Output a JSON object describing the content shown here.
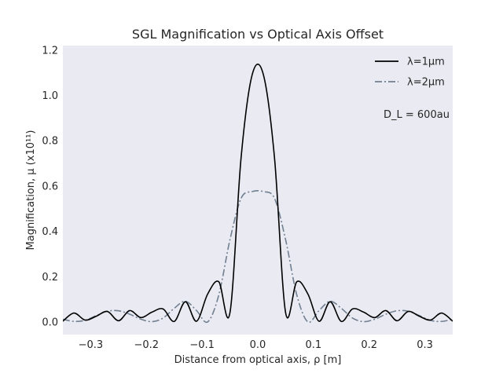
{
  "chart_data": {
    "type": "line",
    "title": "SGL Magnification vs Optical Axis Offset",
    "xlabel": "Distance from optical axis, ρ [m]",
    "ylabel": "Magnification, μ (x10¹¹)",
    "xlim": [
      -0.35,
      0.35
    ],
    "ylim": [
      -0.055,
      1.22
    ],
    "xticks": [
      -0.3,
      -0.2,
      -0.1,
      0.0,
      0.1,
      0.2,
      0.3
    ],
    "xtick_labels": [
      "−0.3",
      "−0.2",
      "−0.1",
      "0.0",
      "0.1",
      "0.2",
      "0.3"
    ],
    "yticks": [
      0.0,
      0.2,
      0.4,
      0.6,
      0.8,
      1.0,
      1.2
    ],
    "ytick_labels": [
      "0.0",
      "0.2",
      "0.4",
      "0.6",
      "0.8",
      "1.0",
      "1.2"
    ],
    "grid": false,
    "legend_position": "top-right",
    "annotation": "D_L = 600au",
    "background_color": "#eaeaf2",
    "series": [
      {
        "name": "λ=1μm",
        "color": "#000000",
        "style": "solid",
        "x": [
          -0.35,
          -0.33,
          -0.31,
          -0.29,
          -0.27,
          -0.25,
          -0.23,
          -0.21,
          -0.19,
          -0.17,
          -0.15,
          -0.13,
          -0.11,
          -0.09,
          -0.07,
          -0.05,
          -0.03,
          -0.01,
          0.01,
          0.03,
          0.05,
          0.07,
          0.09,
          0.11,
          0.13,
          0.15,
          0.17,
          0.19,
          0.21,
          0.23,
          0.25,
          0.27,
          0.29,
          0.31,
          0.33,
          0.35
        ],
        "y": [
          0.004,
          0.04,
          0.009,
          0.026,
          0.047,
          0.006,
          0.051,
          0.02,
          0.044,
          0.058,
          0.003,
          0.09,
          0.004,
          0.124,
          0.178,
          0.041,
          0.725,
          1.092,
          1.092,
          0.725,
          0.041,
          0.178,
          0.124,
          0.004,
          0.09,
          0.003,
          0.058,
          0.044,
          0.02,
          0.051,
          0.006,
          0.047,
          0.026,
          0.009,
          0.04,
          0.004
        ]
      },
      {
        "name": "λ=2μm",
        "color": "#708090",
        "style": "dashdot",
        "x": [
          -0.35,
          -0.33,
          -0.31,
          -0.29,
          -0.27,
          -0.25,
          -0.23,
          -0.21,
          -0.19,
          -0.17,
          -0.15,
          -0.13,
          -0.11,
          -0.09,
          -0.07,
          -0.05,
          -0.03,
          -0.01,
          0.01,
          0.03,
          0.05,
          0.07,
          0.09,
          0.11,
          0.13,
          0.15,
          0.17,
          0.19,
          0.21,
          0.23,
          0.25,
          0.27,
          0.29,
          0.31,
          0.33,
          0.35
        ],
        "y": [
          0.013,
          0.003,
          0.008,
          0.029,
          0.048,
          0.05,
          0.035,
          0.013,
          0.002,
          0.018,
          0.061,
          0.092,
          0.051,
          0.001,
          0.12,
          0.363,
          0.546,
          0.576,
          0.576,
          0.546,
          0.363,
          0.12,
          0.001,
          0.051,
          0.092,
          0.061,
          0.018,
          0.002,
          0.013,
          0.035,
          0.05,
          0.048,
          0.029,
          0.008,
          0.003,
          0.013
        ]
      }
    ]
  }
}
